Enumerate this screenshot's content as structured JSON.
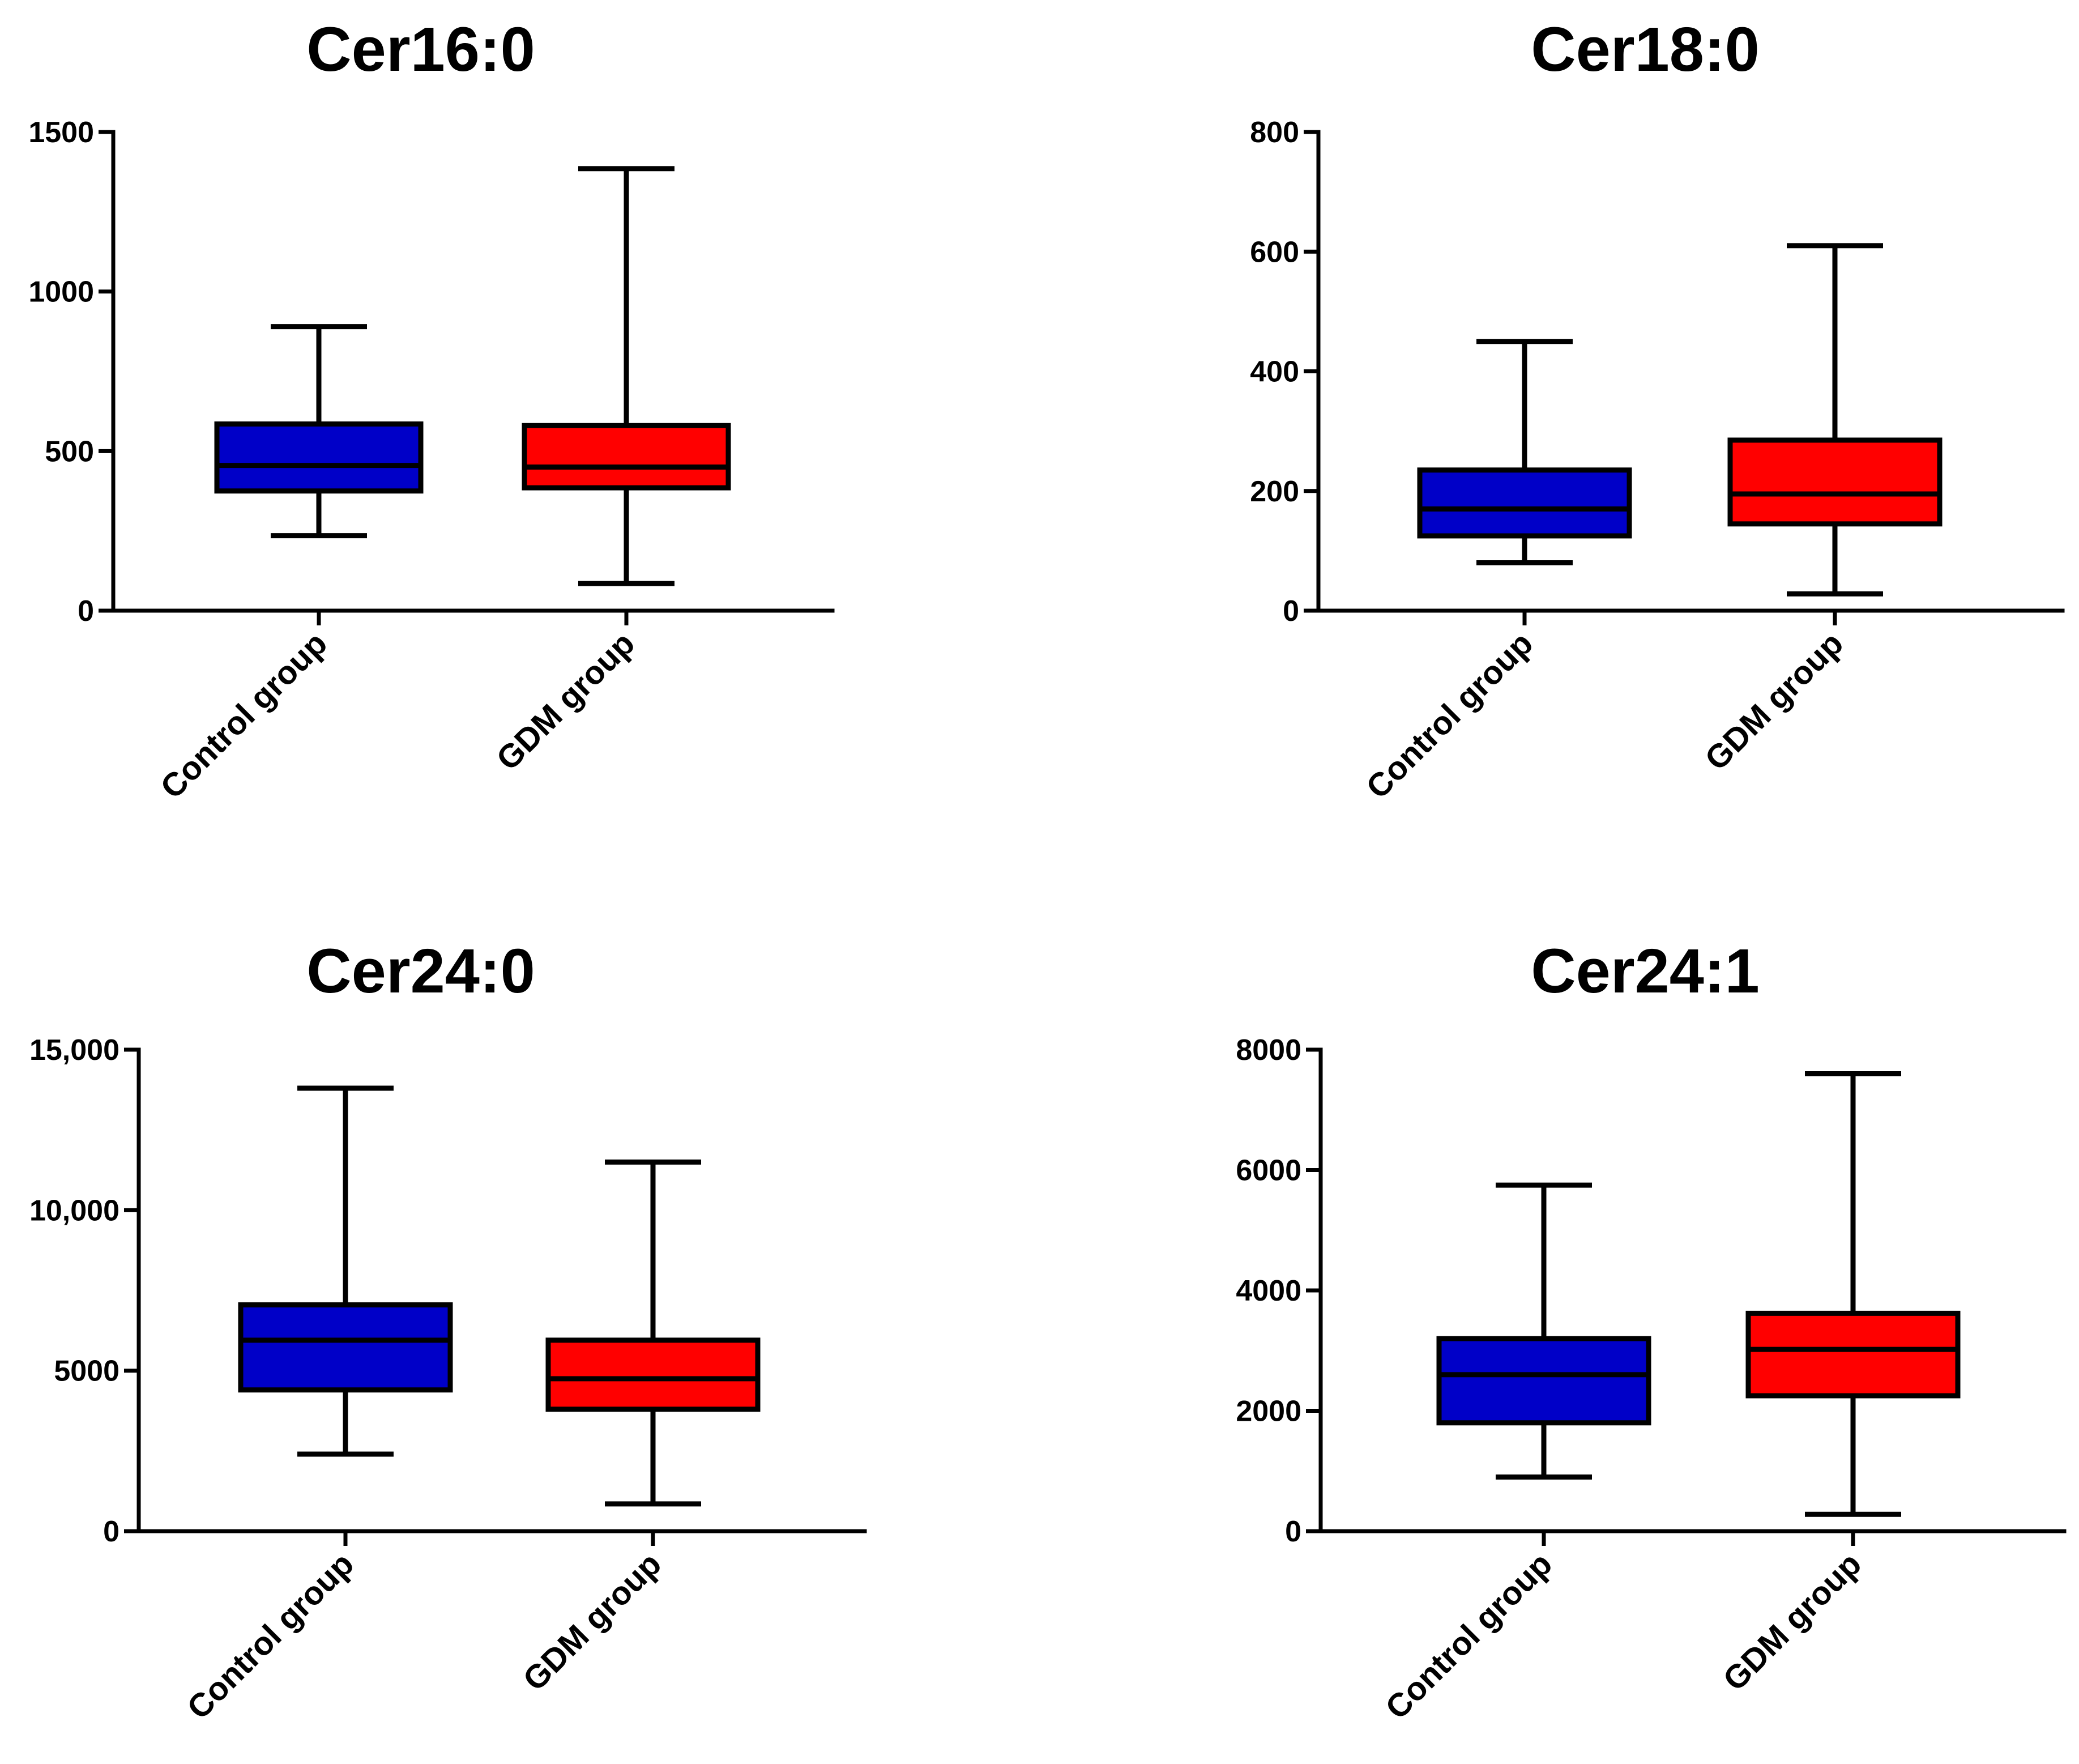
{
  "colors": {
    "control": "#0000c8",
    "gdm": "#ff0000",
    "ink": "#000000"
  },
  "chart_data": [
    {
      "type": "box",
      "title": "Cer16:0",
      "categories": [
        "Control group",
        "GDM group"
      ],
      "yticks": [
        0,
        500,
        1000,
        1500
      ],
      "ytick_labels": [
        "0",
        "500",
        "1000",
        "1500"
      ],
      "ylim": [
        0,
        1500
      ],
      "series": [
        {
          "category": "Control group",
          "min": 235,
          "q1": 375,
          "median": 455,
          "q3": 585,
          "max": 890,
          "color": "#0000c8"
        },
        {
          "category": "GDM group",
          "min": 85,
          "q1": 385,
          "median": 450,
          "q3": 580,
          "max": 1385,
          "color": "#ff0000"
        }
      ]
    },
    {
      "type": "box",
      "title": "Cer18:0",
      "categories": [
        "Control group",
        "GDM group"
      ],
      "yticks": [
        0,
        200,
        400,
        600,
        800
      ],
      "ytick_labels": [
        "0",
        "200",
        "400",
        "600",
        "800"
      ],
      "ylim": [
        0,
        800
      ],
      "series": [
        {
          "category": "Control group",
          "min": 80,
          "q1": 125,
          "median": 170,
          "q3": 235,
          "max": 450,
          "color": "#0000c8"
        },
        {
          "category": "GDM group",
          "min": 28,
          "q1": 145,
          "median": 195,
          "q3": 285,
          "max": 610,
          "color": "#ff0000"
        }
      ]
    },
    {
      "type": "box",
      "title": "Cer24:0",
      "categories": [
        "Control group",
        "GDM group"
      ],
      "yticks": [
        0,
        5000,
        10000,
        15000
      ],
      "ytick_labels": [
        "0",
        "5000",
        "10,000",
        "15,000"
      ],
      "ylim": [
        0,
        15000
      ],
      "series": [
        {
          "category": "Control group",
          "min": 2400,
          "q1": 4400,
          "median": 5950,
          "q3": 7050,
          "max": 13800,
          "color": "#0000c8"
        },
        {
          "category": "GDM group",
          "min": 850,
          "q1": 3800,
          "median": 4750,
          "q3": 5950,
          "max": 11500,
          "color": "#ff0000"
        }
      ]
    },
    {
      "type": "box",
      "title": "Cer24:1",
      "categories": [
        "Control group",
        "GDM group"
      ],
      "yticks": [
        0,
        2000,
        4000,
        6000,
        8000
      ],
      "ytick_labels": [
        "0",
        "2000",
        "4000",
        "6000",
        "8000"
      ],
      "ylim": [
        0,
        8000
      ],
      "series": [
        {
          "category": "Control group",
          "min": 900,
          "q1": 1800,
          "median": 2600,
          "q3": 3200,
          "max": 5750,
          "color": "#0000c8"
        },
        {
          "category": "GDM group",
          "min": 280,
          "q1": 2250,
          "median": 3020,
          "q3": 3620,
          "max": 7600,
          "color": "#ff0000"
        }
      ]
    }
  ]
}
